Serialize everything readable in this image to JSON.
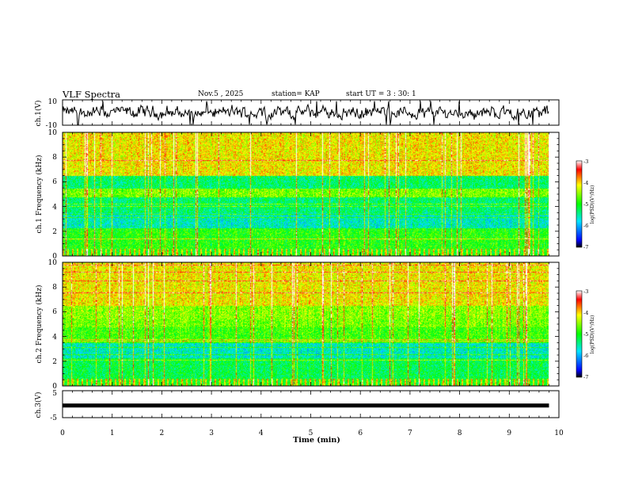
{
  "header": {
    "title": "VLF Spectra",
    "date": "Nov.5 , 2025",
    "station": "station= KAP",
    "start_ut": "start UT = 3 : 30: 1"
  },
  "colorbar": {
    "label": "log(PSD)(V²/Hz)",
    "ticks": [
      "-3",
      "-4",
      "-5",
      "-6",
      "-7"
    ],
    "range": [
      -7,
      -3
    ],
    "colors": [
      "#000000",
      "#0000ff",
      "#00e5ff",
      "#00ff00",
      "#ffff00",
      "#ff0000",
      "#ffffff"
    ]
  },
  "chart_data": [
    {
      "type": "line",
      "name": "ch1-waveform",
      "ylabel": "ch.1(V)",
      "ylim": [
        -10,
        10
      ],
      "yticks": [
        "10",
        "-10"
      ],
      "xlim": [
        0,
        10
      ],
      "data_extent_min": 9.8,
      "description_values": {
        "mean": 0,
        "amplitude": 6
      }
    },
    {
      "type": "heatmap",
      "name": "ch1-spectrogram",
      "ylabel": "ch.1 Frequency (kHz)",
      "ylim": [
        0,
        10
      ],
      "yticks": [
        "0",
        "2",
        "4",
        "6",
        "8",
        "10"
      ],
      "xlim": [
        0,
        10
      ],
      "zlim": [
        -7,
        -3
      ]
    },
    {
      "type": "heatmap",
      "name": "ch2-spectrogram",
      "ylabel": "ch.2 Frequency (kHz)",
      "ylim": [
        0,
        10
      ],
      "yticks": [
        "0",
        "2",
        "4",
        "6",
        "8",
        "10"
      ],
      "xlim": [
        0,
        10
      ],
      "zlim": [
        -7,
        -3
      ]
    },
    {
      "type": "line",
      "name": "ch3-waveform",
      "ylabel": "ch.3(V)",
      "ylim": [
        -5,
        5
      ],
      "yticks": [
        "5",
        "-5"
      ],
      "xlim": [
        0,
        10
      ],
      "constant_value": -0.5
    }
  ],
  "xaxis": {
    "label": "Time (min)",
    "ticks": [
      "0",
      "1",
      "2",
      "3",
      "4",
      "5",
      "6",
      "7",
      "8",
      "9",
      "10"
    ]
  }
}
